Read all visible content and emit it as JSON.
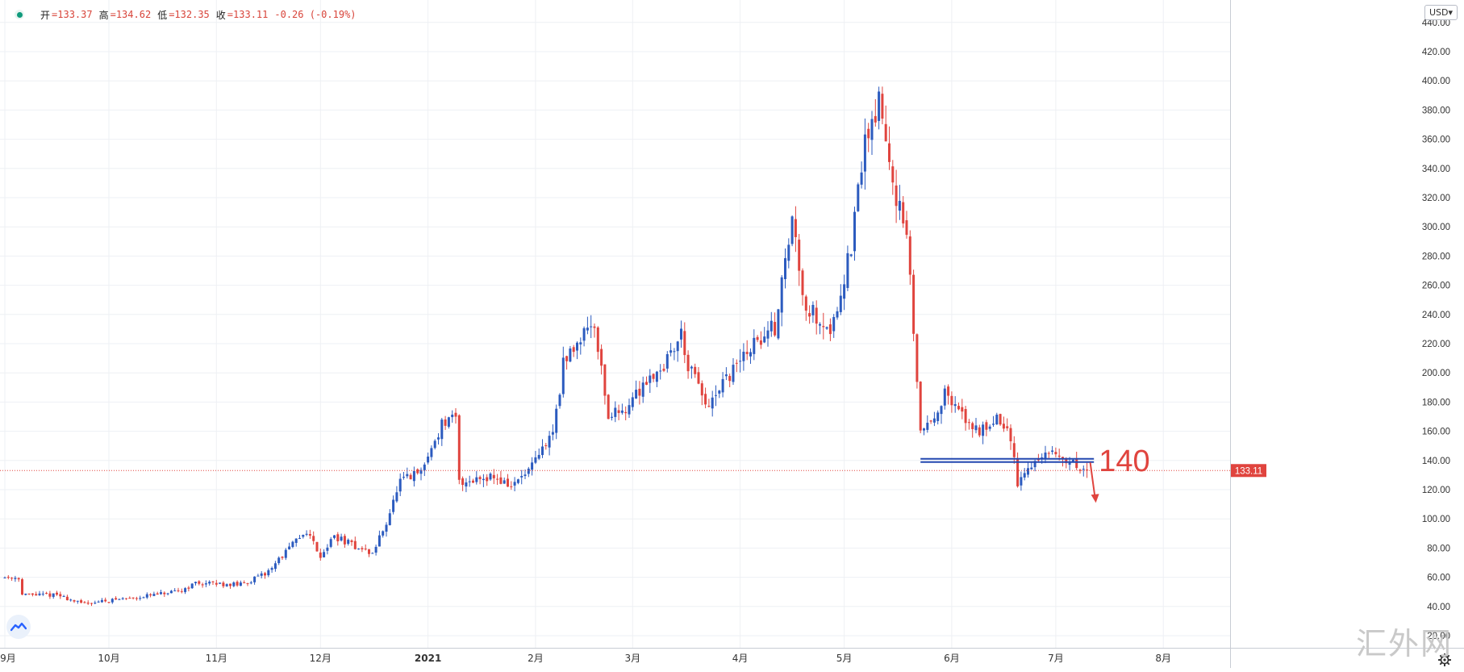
{
  "header": {
    "open_label": "开",
    "open": "=133.37",
    "high_label": "高",
    "high": "=134.62",
    "low_label": "低",
    "low": "=132.35",
    "close_label": "收",
    "close": "=133.11",
    "change": "-0.26 (-0.19%)"
  },
  "currency": "USD",
  "watermark": "汇外网",
  "colors": {
    "up": "#2c5bbf",
    "down": "#e0443e",
    "grid": "#eef0f4",
    "price_line": "#e0443e",
    "annotation": "#e0443e",
    "level_line": "#2348b0"
  },
  "chart_data": {
    "type": "candlestick",
    "currency": "USD",
    "ylim": [
      20,
      440
    ],
    "y_ticks": [
      "20.00",
      "40.00",
      "60.00",
      "80.00",
      "100.00",
      "120.00",
      "140.00",
      "160.00",
      "180.00",
      "200.00",
      "220.00",
      "240.00",
      "260.00",
      "280.00",
      "300.00",
      "320.00",
      "340.00",
      "360.00",
      "380.00",
      "400.00",
      "420.00",
      "440.00"
    ],
    "x_ticks": [
      {
        "label": "9月",
        "day": 0
      },
      {
        "label": "10月",
        "day": 30
      },
      {
        "label": "11月",
        "day": 61
      },
      {
        "label": "12月",
        "day": 91
      },
      {
        "label": "2021",
        "day": 122
      },
      {
        "label": "2月",
        "day": 153
      },
      {
        "label": "3月",
        "day": 181
      },
      {
        "label": "4月",
        "day": 212
      },
      {
        "label": "5月",
        "day": 242
      },
      {
        "label": "6月",
        "day": 273
      },
      {
        "label": "7月",
        "day": 303
      },
      {
        "label": "8月",
        "day": 334
      }
    ],
    "last_price": 133.11,
    "last_price_label": "133.11",
    "level_line": {
      "value": 140,
      "label": "140",
      "from_day": 264,
      "to_day": 314
    },
    "trend_anchors": [
      [
        0,
        60
      ],
      [
        4,
        60
      ],
      [
        5,
        48
      ],
      [
        15,
        48
      ],
      [
        22,
        42
      ],
      [
        40,
        47
      ],
      [
        50,
        50
      ],
      [
        55,
        56
      ],
      [
        68,
        55
      ],
      [
        75,
        62
      ],
      [
        82,
        80
      ],
      [
        87,
        92
      ],
      [
        91,
        75
      ],
      [
        95,
        88
      ],
      [
        102,
        80
      ],
      [
        106,
        76
      ],
      [
        110,
        98
      ],
      [
        114,
        125
      ],
      [
        120,
        132
      ],
      [
        126,
        165
      ],
      [
        130,
        168
      ],
      [
        131,
        125
      ],
      [
        140,
        130
      ],
      [
        146,
        122
      ],
      [
        152,
        135
      ],
      [
        158,
        160
      ],
      [
        161,
        205
      ],
      [
        167,
        230
      ],
      [
        170,
        235
      ],
      [
        174,
        170
      ],
      [
        180,
        178
      ],
      [
        185,
        196
      ],
      [
        190,
        205
      ],
      [
        195,
        227
      ],
      [
        197,
        205
      ],
      [
        203,
        175
      ],
      [
        208,
        195
      ],
      [
        214,
        215
      ],
      [
        222,
        232
      ],
      [
        227,
        305
      ],
      [
        231,
        245
      ],
      [
        236,
        235
      ],
      [
        238,
        228
      ],
      [
        244,
        285
      ],
      [
        248,
        360
      ],
      [
        252,
        385
      ],
      [
        257,
        322
      ],
      [
        260,
        290
      ],
      [
        262,
        230
      ],
      [
        264,
        160
      ],
      [
        267,
        168
      ],
      [
        271,
        185
      ],
      [
        276,
        170
      ],
      [
        281,
        160
      ],
      [
        286,
        170
      ],
      [
        290,
        155
      ],
      [
        292,
        125
      ],
      [
        295,
        135
      ],
      [
        300,
        145
      ],
      [
        306,
        140
      ],
      [
        312,
        133
      ]
    ],
    "seed": 11
  }
}
